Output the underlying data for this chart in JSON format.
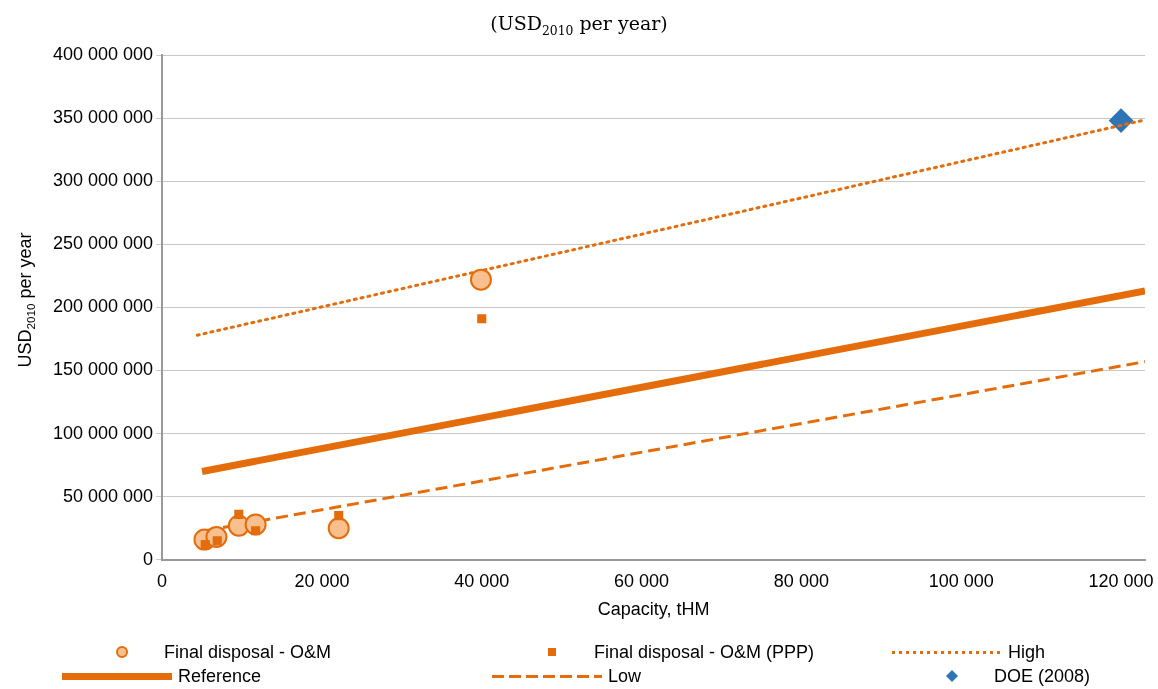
{
  "chart_data": {
    "type": "scatter",
    "title": "(USD$_{2010}$ per year)",
    "xlabel": "Capacity, tHM",
    "ylabel": "USD$_{2010}$ per year",
    "xlim": [
      0,
      123000
    ],
    "xticks": [
      {
        "value": 0,
        "label": "0"
      },
      {
        "value": 20000,
        "label": "20 000"
      },
      {
        "value": 40000,
        "label": "40 000"
      },
      {
        "value": 60000,
        "label": "60 000"
      },
      {
        "value": 80000,
        "label": "80 000"
      },
      {
        "value": 100000,
        "label": "100 000"
      },
      {
        "value": 120000,
        "label": "120 000"
      }
    ],
    "ylim": [
      0,
      400000000
    ],
    "yticks": [
      {
        "value": 0,
        "label": "0"
      },
      {
        "value": 50000000,
        "label": "50 000 000"
      },
      {
        "value": 100000000,
        "label": "100 000 000"
      },
      {
        "value": 150000000,
        "label": "150 000 000"
      },
      {
        "value": 200000000,
        "label": "200 000 000"
      },
      {
        "value": 250000000,
        "label": "250 000 000"
      },
      {
        "value": 300000000,
        "label": "300 000 000"
      },
      {
        "value": 350000000,
        "label": "350 000 000"
      },
      {
        "value": 400000000,
        "label": "400 000 000"
      }
    ],
    "grid": "y",
    "legend": "bottom",
    "series": [
      {
        "name": "Final disposal - O&M",
        "marker": "circle",
        "color": "#e46c0a",
        "x": [
          5300,
          6800,
          9600,
          11700,
          22100,
          39900
        ],
        "values": [
          16000000,
          18000000,
          27000000,
          28000000,
          25000000,
          222000000
        ]
      },
      {
        "name": "Final disposal - O&M (PPP)",
        "marker": "square",
        "color": "#e46c0a",
        "x": [
          5400,
          6900,
          9600,
          11700,
          22100,
          40000
        ],
        "values": [
          12000000,
          15000000,
          36000000,
          23000000,
          35000000,
          191000000
        ]
      },
      {
        "name": "High",
        "type": "line",
        "marker": "none",
        "line_style": "dotted",
        "color": "#e46c0a",
        "x": [
          4400,
          122600
        ],
        "values": [
          178000000,
          348000000
        ]
      },
      {
        "name": "Reference",
        "type": "line",
        "marker": "none",
        "line_style": "solid",
        "color": "#e46c0a",
        "x": [
          5000,
          123000
        ],
        "values": [
          70000000,
          213000000
        ]
      },
      {
        "name": "Low",
        "type": "line",
        "marker": "none",
        "line_style": "dashed",
        "color": "#e46c0a",
        "x": [
          5400,
          123000
        ],
        "values": [
          23000000,
          157000000
        ]
      },
      {
        "name": "DOE (2008)",
        "marker": "diamond",
        "color": "#2e75b6",
        "x": [
          120000
        ],
        "values": [
          348000000
        ]
      }
    ]
  }
}
